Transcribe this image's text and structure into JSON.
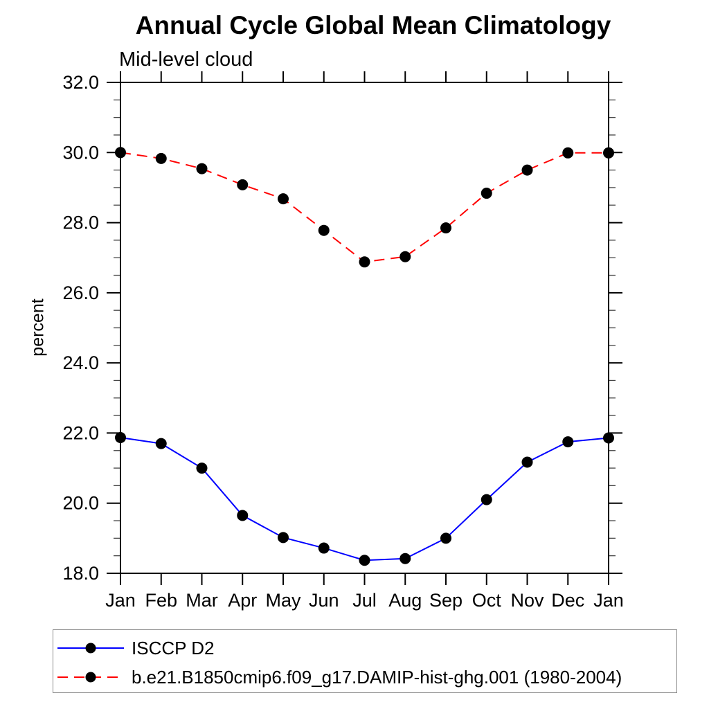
{
  "chart_data": {
    "type": "line",
    "title": "Annual Cycle Global Mean Climatology",
    "subtitle": "Mid-level cloud",
    "ylabel": "percent",
    "xlabel": "",
    "categories": [
      "Jan",
      "Feb",
      "Mar",
      "Apr",
      "May",
      "Jun",
      "Jul",
      "Aug",
      "Sep",
      "Oct",
      "Nov",
      "Dec",
      "Jan"
    ],
    "ylim": [
      18.0,
      32.0
    ],
    "ytick_step": 2.0,
    "yminor_step": 0.5,
    "ytick_labels": [
      "18.0",
      "20.0",
      "22.0",
      "24.0",
      "26.0",
      "28.0",
      "30.0",
      "32.0"
    ],
    "grid": false,
    "legend_position": "bottom-left-box",
    "series": [
      {
        "name": "ISCCP D2",
        "color": "#0000ff",
        "line_style": "solid",
        "marker": "filled-circle",
        "marker_color": "#000000",
        "values": [
          21.87,
          21.7,
          21.0,
          19.65,
          19.02,
          18.72,
          18.37,
          18.42,
          19.0,
          20.1,
          21.17,
          21.75,
          21.86
        ]
      },
      {
        "name": "b.e21.B1850cmip6.f09_g17.DAMIP-hist-ghg.001 (1980-2004)",
        "color": "#ff0000",
        "line_style": "dashed",
        "marker": "filled-circle",
        "marker_color": "#000000",
        "values": [
          30.0,
          29.83,
          29.54,
          29.08,
          28.68,
          27.78,
          26.88,
          27.03,
          27.85,
          28.84,
          29.5,
          29.99,
          29.99
        ]
      }
    ]
  }
}
